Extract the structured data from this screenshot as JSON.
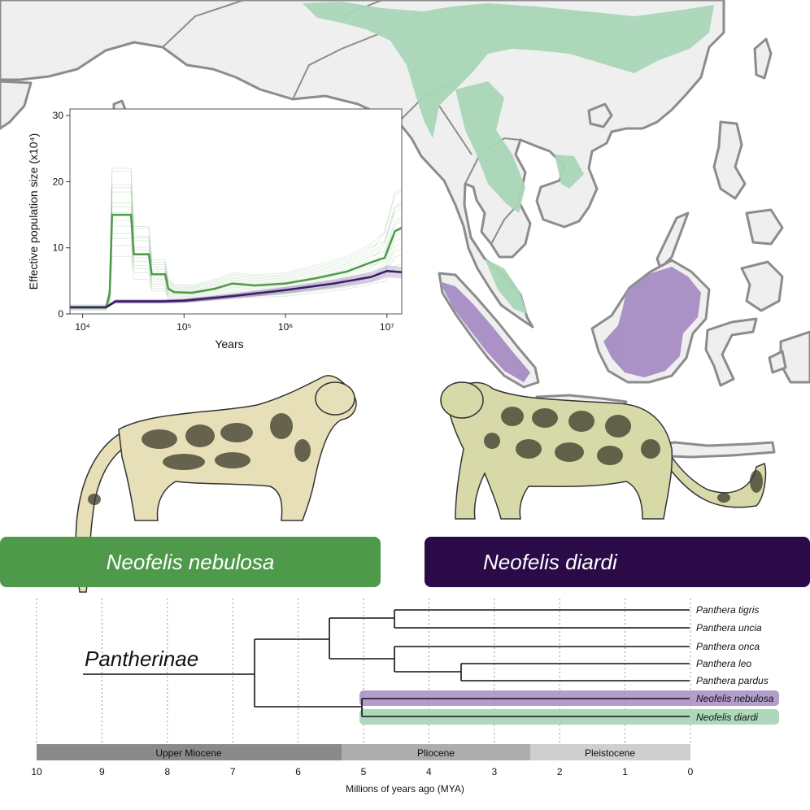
{
  "colors": {
    "nebulosa": "#4e9a4a",
    "nebulosa_light": "#a9d6b7",
    "diardi": "#2b0a48",
    "diardi_light": "#a58cc3",
    "land": "#efefef",
    "coast": "#8c8c8c"
  },
  "psmc": {
    "ylabel": "Effective population size (x10⁴)",
    "xlabel": "Years",
    "y_ticks": [
      "0",
      "10",
      "20",
      "30"
    ],
    "x_ticks": [
      "10⁴",
      "10⁵",
      "10⁶",
      "10⁷"
    ]
  },
  "chart_data": {
    "type": "line",
    "xlabel": "Years",
    "ylabel": "Effective population size (x10⁴)",
    "x_scale": "log",
    "xlim": [
      7500,
      14000000
    ],
    "ylim": [
      0,
      31
    ],
    "series": [
      {
        "color": "#4e9a4a",
        "x": [
          7500,
          17000,
          18500,
          19500,
          21000,
          30000,
          32000,
          45000,
          48000,
          65000,
          70000,
          80000,
          120000,
          200000,
          300000,
          500000,
          1000000,
          2000000,
          4000000,
          7000000,
          9500000,
          12000000,
          14000000
        ],
        "y": [
          1.0,
          1.0,
          3.0,
          15.0,
          15.0,
          15.0,
          9.0,
          9.0,
          6.0,
          6.0,
          3.8,
          3.3,
          3.2,
          3.8,
          4.6,
          4.3,
          4.6,
          5.4,
          6.4,
          7.8,
          8.5,
          12.5,
          13.0
        ]
      },
      {
        "color": "#3d1a6e",
        "x": [
          7500,
          17000,
          21000,
          60000,
          100000,
          300000,
          1000000,
          3000000,
          7000000,
          10000000,
          14000000
        ],
        "y": [
          1.0,
          1.0,
          1.9,
          1.9,
          2.0,
          2.7,
          3.6,
          4.6,
          5.6,
          6.5,
          6.3
        ]
      }
    ]
  },
  "banners": {
    "nebulosa": "Neofelis nebulosa",
    "diardi": "Neofelis diardi"
  },
  "phylogeny": {
    "clade_label": "Pantherinae",
    "taxa": [
      "Panthera tigris",
      "Panthera uncia",
      "Panthera onca",
      "Panthera leo",
      "Panthera pardus",
      "Neofelis nebulosa",
      "Neofelis diardi"
    ],
    "epochs": [
      "Upper Miocene",
      "Pliocene",
      "Pleistocene"
    ],
    "axis_ticks": [
      "10",
      "9",
      "8",
      "7",
      "6",
      "5",
      "4",
      "3",
      "2",
      "1",
      "0"
    ],
    "axis_label": "Millions of years ago (MYA)"
  }
}
